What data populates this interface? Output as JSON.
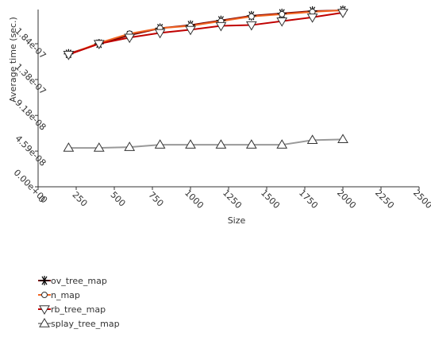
{
  "chart_data": {
    "type": "line",
    "xlabel": "Size",
    "ylabel": "Average time (sec.)",
    "x": [
      200,
      400,
      600,
      800,
      1000,
      1200,
      1400,
      1600,
      1800,
      2000
    ],
    "xlim": [
      0,
      2500
    ],
    "xticks": [
      0,
      250,
      500,
      750,
      1000,
      1250,
      1500,
      1750,
      2000,
      2250,
      2500
    ],
    "ylim": [
      0,
      2.28e-07
    ],
    "yticks": [
      {
        "value": 0,
        "label": "0.00e+00"
      },
      {
        "value": 4.59e-08,
        "label": "4.59e-08"
      },
      {
        "value": 9.18e-08,
        "label": "9.18e-08"
      },
      {
        "value": 1.38e-07,
        "label": "1.38e-07"
      },
      {
        "value": 1.84e-07,
        "label": "1.84e-07"
      }
    ],
    "grid": false,
    "series": [
      {
        "name": "ov_tree_map",
        "color": "#7a0000",
        "marker": "asterisk",
        "values": [
          1.71e-07,
          1.84e-07,
          1.95e-07,
          2.04e-07,
          2.08e-07,
          2.14e-07,
          2.2e-07,
          2.23e-07,
          2.26e-07,
          2.27e-07
        ]
      },
      {
        "name": "n_map",
        "color": "#f26522",
        "marker": "circle",
        "values": [
          1.7e-07,
          1.85e-07,
          1.97e-07,
          2.04e-07,
          2.07e-07,
          2.13e-07,
          2.19e-07,
          2.22e-07,
          2.25e-07,
          2.27e-07
        ]
      },
      {
        "name": "rb_tree_map",
        "color": "#c00000",
        "marker": "down-triangle",
        "values": [
          1.7e-07,
          1.84e-07,
          1.92e-07,
          1.98e-07,
          2.02e-07,
          2.07e-07,
          2.08e-07,
          2.13e-07,
          2.18e-07,
          2.24e-07
        ]
      },
      {
        "name": "splay_tree_map",
        "color": "#999999",
        "marker": "up-triangle",
        "values": [
          5e-08,
          5e-08,
          5.1e-08,
          5.4e-08,
          5.4e-08,
          5.4e-08,
          5.4e-08,
          5.4e-08,
          6e-08,
          6.1e-08
        ]
      }
    ]
  }
}
